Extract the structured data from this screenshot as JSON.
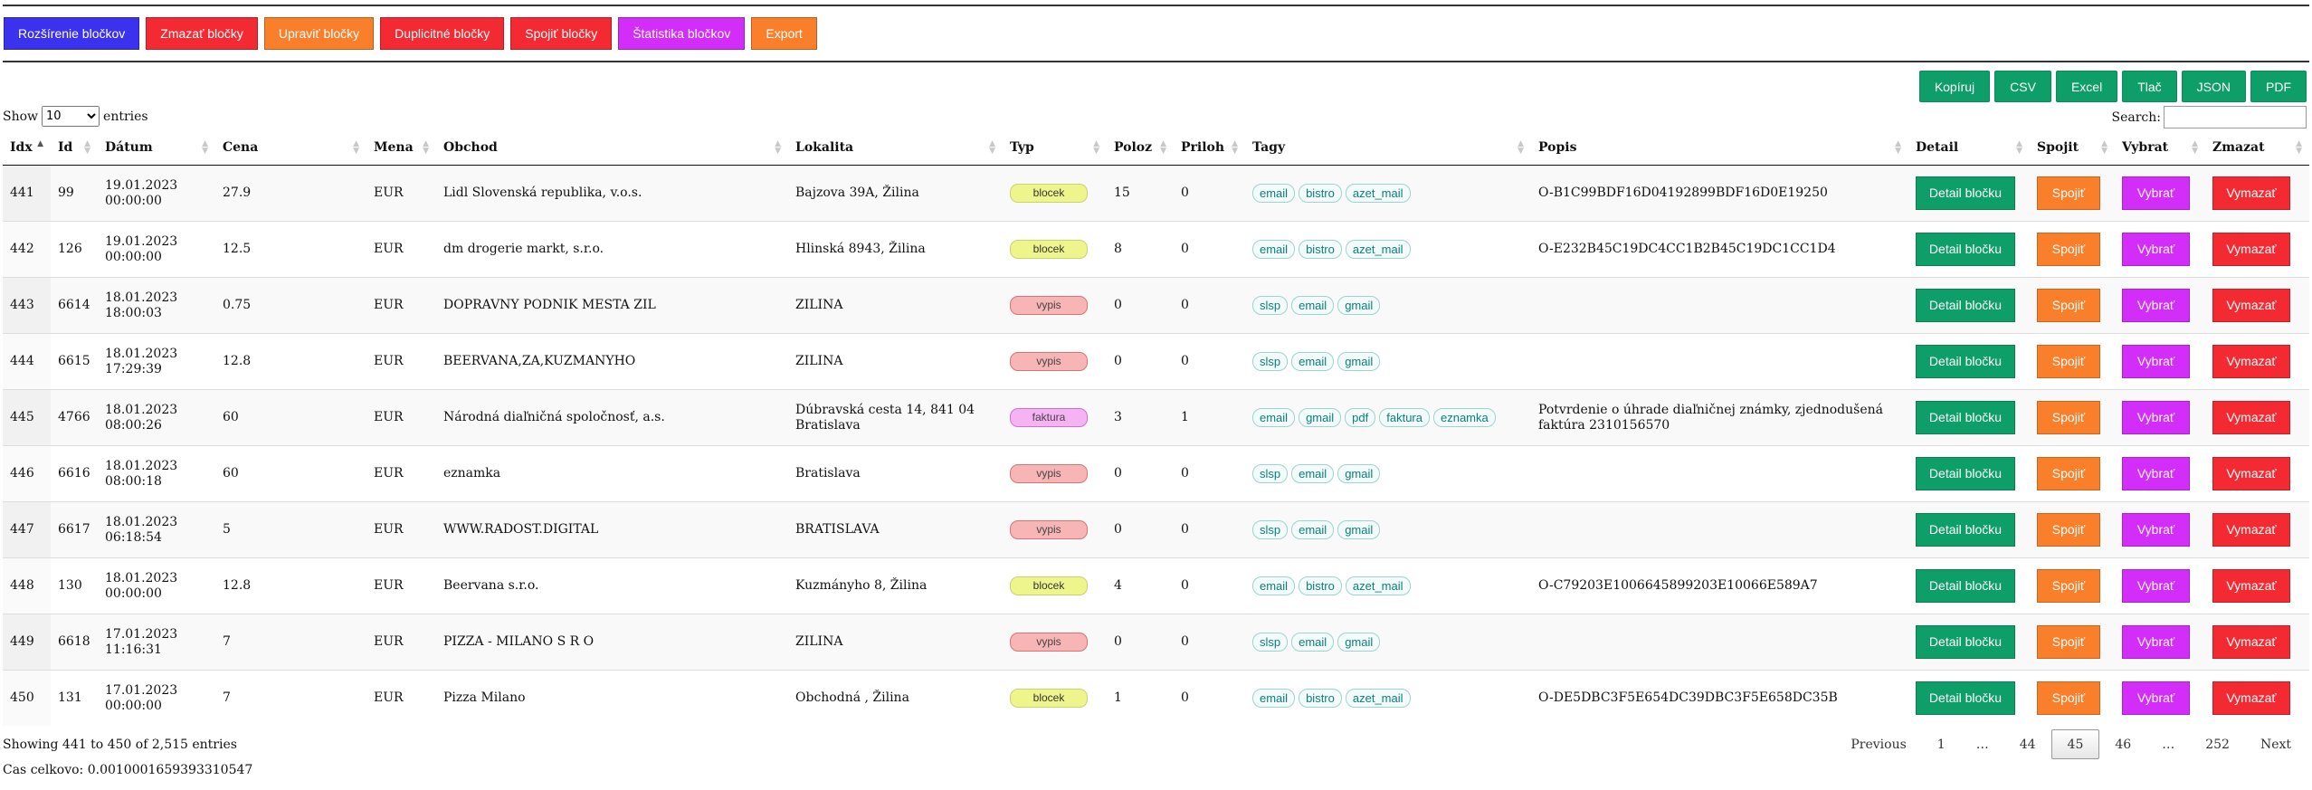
{
  "toolbar": [
    {
      "label": "Rozšírenie bločkov",
      "color": "#3b32f0"
    },
    {
      "label": "Zmazať bločky",
      "color": "#f42a32"
    },
    {
      "label": "Upraviť bločky",
      "color": "#fa7f2b"
    },
    {
      "label": "Duplicitné bločky",
      "color": "#f42a32"
    },
    {
      "label": "Spojiť bločky",
      "color": "#f42a32"
    },
    {
      "label": "Štatistika bločkov",
      "color": "#d32dfa"
    },
    {
      "label": "Export",
      "color": "#fa7f2b"
    }
  ],
  "export_buttons": [
    "Kopíruj",
    "CSV",
    "Excel",
    "Tlač",
    "JSON",
    "PDF"
  ],
  "length": {
    "show": "Show",
    "value": "10",
    "suffix": "entries"
  },
  "search": {
    "label": "Search:",
    "value": ""
  },
  "columns": [
    "Idx",
    "Id",
    "Dátum",
    "Cena",
    "Mena",
    "Obchod",
    "Lokalita",
    "Typ",
    "Poloz",
    "Priloh",
    "Tagy",
    "Popis",
    "Detail",
    "Spojit",
    "Vybrat",
    "Zmazat"
  ],
  "actions": {
    "detail": "Detail bločku",
    "spojit": "Spojiť",
    "vybrat": "Vybrať",
    "vymazat": "Vymazať"
  },
  "rows": [
    {
      "idx": "441",
      "id": "99",
      "date": "19.01.2023",
      "time": "00:00:00",
      "cena": "27.9",
      "mena": "EUR",
      "obchod": "Lidl Slovenská republika, v.o.s.",
      "lokalita": "Bajzova 39A, Žilina",
      "typ": "blocek",
      "poloz": "15",
      "priloh": "0",
      "tags": [
        "email",
        "bistro",
        "azet_mail"
      ],
      "popis": "O-B1C99BDF16D04192899BDF16D0E19250"
    },
    {
      "idx": "442",
      "id": "126",
      "date": "19.01.2023",
      "time": "00:00:00",
      "cena": "12.5",
      "mena": "EUR",
      "obchod": "dm drogerie markt, s.r.o.",
      "lokalita": "Hlinská 8943, Žilina",
      "typ": "blocek",
      "poloz": "8",
      "priloh": "0",
      "tags": [
        "email",
        "bistro",
        "azet_mail"
      ],
      "popis": "O-E232B45C19DC4CC1B2B45C19DC1CC1D4"
    },
    {
      "idx": "443",
      "id": "6614",
      "date": "18.01.2023",
      "time": "18:00:03",
      "cena": "0.75",
      "mena": "EUR",
      "obchod": "DOPRAVNY PODNIK MESTA ZIL",
      "lokalita": "ZILINA",
      "typ": "vypis",
      "poloz": "0",
      "priloh": "0",
      "tags": [
        "slsp",
        "email",
        "gmail"
      ],
      "popis": ""
    },
    {
      "idx": "444",
      "id": "6615",
      "date": "18.01.2023",
      "time": "17:29:39",
      "cena": "12.8",
      "mena": "EUR",
      "obchod": "BEERVANA,ZA,KUZMANYHO",
      "lokalita": "ZILINA",
      "typ": "vypis",
      "poloz": "0",
      "priloh": "0",
      "tags": [
        "slsp",
        "email",
        "gmail"
      ],
      "popis": ""
    },
    {
      "idx": "445",
      "id": "4766",
      "date": "18.01.2023",
      "time": "08:00:26",
      "cena": "60",
      "mena": "EUR",
      "obchod": "Národná diaľničná spoločnosť, a.s.",
      "lokalita": "Dúbravská cesta 14, 841 04 Bratislava",
      "typ": "faktura",
      "poloz": "3",
      "priloh": "1",
      "tags": [
        "email",
        "gmail",
        "pdf",
        "faktura",
        "eznamka"
      ],
      "popis": "Potvrdenie o úhrade diaľničnej známky, zjednodušená faktúra 2310156570"
    },
    {
      "idx": "446",
      "id": "6616",
      "date": "18.01.2023",
      "time": "08:00:18",
      "cena": "60",
      "mena": "EUR",
      "obchod": "eznamka",
      "lokalita": "Bratislava",
      "typ": "vypis",
      "poloz": "0",
      "priloh": "0",
      "tags": [
        "slsp",
        "email",
        "gmail"
      ],
      "popis": ""
    },
    {
      "idx": "447",
      "id": "6617",
      "date": "18.01.2023",
      "time": "06:18:54",
      "cena": "5",
      "mena": "EUR",
      "obchod": "WWW.RADOST.DIGITAL",
      "lokalita": "BRATISLAVA",
      "typ": "vypis",
      "poloz": "0",
      "priloh": "0",
      "tags": [
        "slsp",
        "email",
        "gmail"
      ],
      "popis": ""
    },
    {
      "idx": "448",
      "id": "130",
      "date": "18.01.2023",
      "time": "00:00:00",
      "cena": "12.8",
      "mena": "EUR",
      "obchod": "Beervana s.r.o.",
      "lokalita": "Kuzmányho 8, Žilina",
      "typ": "blocek",
      "poloz": "4",
      "priloh": "0",
      "tags": [
        "email",
        "bistro",
        "azet_mail"
      ],
      "popis": "O-C79203E1006645899203E10066E589A7"
    },
    {
      "idx": "449",
      "id": "6618",
      "date": "17.01.2023",
      "time": "11:16:31",
      "cena": "7",
      "mena": "EUR",
      "obchod": "PIZZA - MILANO S R O",
      "lokalita": "ZILINA",
      "typ": "vypis",
      "poloz": "0",
      "priloh": "0",
      "tags": [
        "slsp",
        "email",
        "gmail"
      ],
      "popis": ""
    },
    {
      "idx": "450",
      "id": "131",
      "date": "17.01.2023",
      "time": "00:00:00",
      "cena": "7",
      "mena": "EUR",
      "obchod": "Pizza Milano",
      "lokalita": "Obchodná , Žilina",
      "typ": "blocek",
      "poloz": "1",
      "priloh": "0",
      "tags": [
        "email",
        "bistro",
        "azet_mail"
      ],
      "popis": "O-DE5DBC3F5E654DC39DBC3F5E658DC35B"
    }
  ],
  "info": "Showing 441 to 450 of 2,515 entries",
  "cas": "Cas celkovo: 0.0010001659393310547",
  "pagination": [
    "Previous",
    "1",
    "…",
    "44",
    "45",
    "46",
    "…",
    "252",
    "Next"
  ],
  "current_page": "45"
}
